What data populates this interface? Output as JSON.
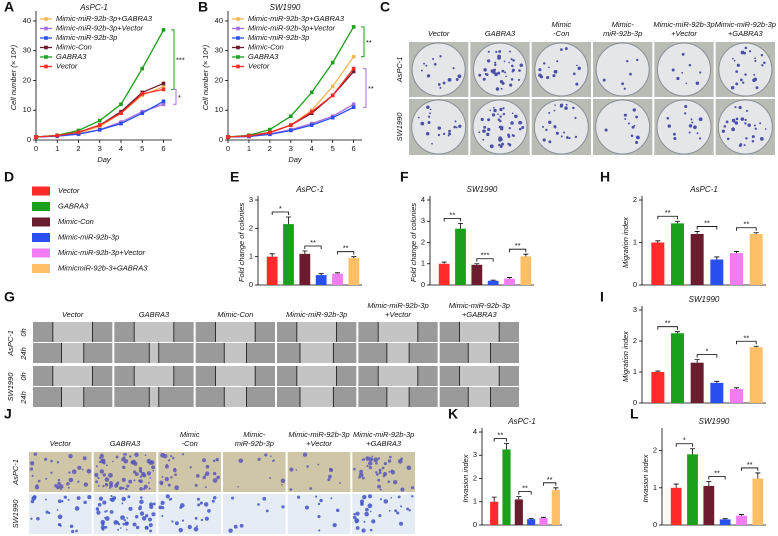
{
  "legend_panel": {
    "label": "D",
    "items": [
      {
        "name": "Vector",
        "color": "#ff2a2a"
      },
      {
        "name": "GABRA3",
        "color": "#1aa01a"
      },
      {
        "name": "Mimic-Con",
        "color": "#6b1c2e"
      },
      {
        "name": "Mimic-miR-92b-3p",
        "color": "#2a4ff0"
      },
      {
        "name": "Mimic-miR-92b-3p+Vector",
        "color": "#f27cf2"
      },
      {
        "name": "MimicmiR-92b-3+GABRA3",
        "color": "#ffbf66"
      }
    ]
  },
  "image_panels": [
    {
      "label": "C",
      "kind": "dish",
      "columns": [
        [
          "Vector"
        ],
        [
          "GABRA3"
        ],
        [
          "Mimic",
          "-Con"
        ],
        [
          "Mimic-",
          "miR-92b-3p"
        ],
        [
          "Mimic-miR-92b-3p",
          "+Vector"
        ],
        [
          "Mimic-miR-92b-3p",
          "+GABRA3"
        ]
      ],
      "rows": [
        "AsPC-1",
        "SW1990"
      ]
    },
    {
      "label": "G",
      "kind": "scratch",
      "columns": [
        [
          "Vector"
        ],
        [
          "GABRA3"
        ],
        [
          "Mimic-Con"
        ],
        [
          "Mimic-miR-92b-3p"
        ],
        [
          "Mimic-miR-92b-3p",
          "+Vector"
        ],
        [
          "Mimic-miR-92b-3p",
          "+GABRA3"
        ]
      ],
      "rows": [
        "AsPC-1",
        "SW1990"
      ],
      "subrows": [
        "0h",
        "24h"
      ]
    },
    {
      "label": "J",
      "kind": "transwell",
      "columns": [
        [
          "Vector"
        ],
        [
          "GABRA3"
        ],
        [
          "Mimic",
          "-Con"
        ],
        [
          "Mimic-",
          "miR-92b-3p"
        ],
        [
          "Mimic-miR-92b-3p",
          "+Vector"
        ],
        [
          "Mimic-miR-92b-3p",
          "+GABRA3"
        ]
      ],
      "rows": [
        "AsPC-1",
        "SW1990"
      ]
    }
  ],
  "chart_data": [
    {
      "type": "line",
      "label": "A",
      "title": "AsPC-1",
      "xlabel": "Day",
      "ylabel": "Cell number (× 10⁴)",
      "x": [
        0,
        1,
        2,
        3,
        4,
        5,
        6
      ],
      "xlim": [
        0,
        6.4
      ],
      "xticks": [
        0,
        1,
        2,
        3,
        4,
        5,
        6
      ],
      "ylim": [
        0,
        42
      ],
      "yticks": [
        0,
        10,
        20,
        30,
        40
      ],
      "series": [
        {
          "name": "Mimic-miR-92b-3p+GABRA3",
          "color": "#f5b55a",
          "values": [
            1,
            1.4,
            2.4,
            4.5,
            9,
            15,
            18
          ]
        },
        {
          "name": "Mimic-miR-92b-3p+Vector",
          "color": "#a86ce0",
          "values": [
            1,
            1.3,
            2,
            3.5,
            6,
            9.5,
            12
          ]
        },
        {
          "name": "Mimic-miR-92b-3p",
          "color": "#2a4ff0",
          "values": [
            1,
            1.3,
            2,
            3.4,
            5.5,
            9,
            13
          ]
        },
        {
          "name": "Mimic-Con",
          "color": "#6b1c2e",
          "values": [
            1,
            1.5,
            2.6,
            5,
            9.5,
            16,
            19
          ]
        },
        {
          "name": "GABRA3",
          "color": "#1aa01a",
          "values": [
            1,
            1.6,
            3.2,
            6.5,
            12,
            24,
            37
          ]
        },
        {
          "name": "Vector",
          "color": "#ff2a2a",
          "values": [
            1,
            1.5,
            2.6,
            5,
            9,
            15.5,
            17
          ]
        }
      ],
      "annotations": [
        {
          "series": [
            4,
            5
          ],
          "label": "***",
          "color": "#1aa01a"
        },
        {
          "series": [
            5,
            1
          ],
          "label": "*",
          "color": "#a86ce0"
        }
      ]
    },
    {
      "type": "line",
      "label": "B",
      "title": "SW1990",
      "xlabel": "Day",
      "ylabel": "Cell number (× 10⁴)",
      "x": [
        0,
        1,
        2,
        3,
        4,
        5,
        6
      ],
      "xlim": [
        0,
        6.4
      ],
      "xticks": [
        0,
        1,
        2,
        3,
        4,
        5,
        6
      ],
      "ylim": [
        0,
        42
      ],
      "yticks": [
        0,
        10,
        20,
        30,
        40
      ],
      "series": [
        {
          "name": "Mimic-miR-92b-3p+GABRA3",
          "color": "#f5b55a",
          "values": [
            1,
            1.4,
            2.6,
            5,
            10,
            18,
            28
          ]
        },
        {
          "name": "Mimic-miR-92b-3p+Vector",
          "color": "#a86ce0",
          "values": [
            1,
            1.2,
            2,
            3.5,
            5.5,
            8,
            12
          ]
        },
        {
          "name": "Mimic-miR-92b-3p",
          "color": "#2a4ff0",
          "values": [
            1,
            1.2,
            1.9,
            3.2,
            5,
            7.5,
            11
          ]
        },
        {
          "name": "Mimic-Con",
          "color": "#6b1c2e",
          "values": [
            1,
            1.4,
            2.5,
            5,
            9,
            15,
            23
          ]
        },
        {
          "name": "GABRA3",
          "color": "#1aa01a",
          "values": [
            1,
            1.6,
            3.5,
            8,
            16,
            26,
            38
          ]
        },
        {
          "name": "Vector",
          "color": "#ff2a2a",
          "values": [
            1,
            1.4,
            2.5,
            5,
            9.5,
            15,
            24
          ]
        }
      ],
      "annotations": [
        {
          "series": [
            4,
            0
          ],
          "label": "**",
          "color": "#1aa01a"
        },
        {
          "series": [
            5,
            2
          ],
          "label": "**",
          "color": "#a86ce0"
        }
      ]
    },
    {
      "type": "bar",
      "label": "E",
      "title": "AsPC-1",
      "ylabel": "Fold change of colonies",
      "categories": [
        null,
        null,
        null,
        null,
        null,
        null
      ],
      "values": [
        1.0,
        2.15,
        1.1,
        0.35,
        0.4,
        0.95
      ],
      "errors": [
        0.1,
        0.25,
        0.1,
        0.05,
        0.03,
        0.05
      ],
      "ylim": [
        0,
        3
      ],
      "yticks": [
        0,
        1,
        2,
        3
      ],
      "annotations": [
        {
          "pair": [
            0,
            1
          ],
          "label": "*"
        },
        {
          "pair": [
            2,
            3
          ],
          "label": "**"
        },
        {
          "pair": [
            4,
            5
          ],
          "label": "**"
        }
      ]
    },
    {
      "type": "bar",
      "label": "F",
      "title": "SW1990",
      "ylabel": "Fold change of colonies",
      "categories": [
        null,
        null,
        null,
        null,
        null,
        null
      ],
      "values": [
        1.0,
        2.65,
        0.95,
        0.2,
        0.3,
        1.35
      ],
      "errors": [
        0.08,
        0.25,
        0.05,
        0.03,
        0.05,
        0.1
      ],
      "ylim": [
        0,
        4
      ],
      "yticks": [
        0,
        1,
        2,
        3,
        4
      ],
      "annotations": [
        {
          "pair": [
            0,
            1
          ],
          "label": "**"
        },
        {
          "pair": [
            2,
            3
          ],
          "label": "***"
        },
        {
          "pair": [
            4,
            5
          ],
          "label": "**"
        }
      ]
    },
    {
      "type": "bar",
      "label": "H",
      "title": "AsPC-1",
      "ylabel": "Migration index",
      "categories": [
        null,
        null,
        null,
        null,
        null,
        null
      ],
      "values": [
        1.0,
        1.45,
        1.2,
        0.6,
        0.75,
        1.2
      ],
      "errors": [
        0.04,
        0.05,
        0.06,
        0.06,
        0.04,
        0.03
      ],
      "ylim": [
        0,
        2
      ],
      "yticks": [
        0,
        1,
        2
      ],
      "annotations": [
        {
          "pair": [
            0,
            1
          ],
          "label": "**"
        },
        {
          "pair": [
            2,
            3
          ],
          "label": "**"
        },
        {
          "pair": [
            4,
            5
          ],
          "label": "**"
        }
      ]
    },
    {
      "type": "bar",
      "label": "I",
      "title": "SW1990",
      "ylabel": "Migration index",
      "categories": [
        null,
        null,
        null,
        null,
        null,
        null
      ],
      "values": [
        1.0,
        2.25,
        1.3,
        0.65,
        0.45,
        1.8
      ],
      "errors": [
        0.03,
        0.05,
        0.1,
        0.05,
        0.04,
        0.03
      ],
      "ylim": [
        0,
        3
      ],
      "yticks": [
        0,
        1,
        2,
        3
      ],
      "annotations": [
        {
          "pair": [
            0,
            1
          ],
          "label": "**"
        },
        {
          "pair": [
            2,
            3
          ],
          "label": "*"
        },
        {
          "pair": [
            4,
            5
          ],
          "label": "**"
        }
      ]
    },
    {
      "type": "bar",
      "label": "K",
      "title": "AsPC-1",
      "ylabel": "Invasion index",
      "categories": [
        null,
        null,
        null,
        null,
        null,
        null
      ],
      "values": [
        1.0,
        3.25,
        1.1,
        0.25,
        0.3,
        1.5
      ],
      "errors": [
        0.2,
        0.25,
        0.12,
        0.03,
        0.03,
        0.1
      ],
      "ylim": [
        0,
        4
      ],
      "yticks": [
        0,
        1,
        2,
        3,
        4
      ],
      "annotations": [
        {
          "pair": [
            0,
            1
          ],
          "label": "**"
        },
        {
          "pair": [
            2,
            3
          ],
          "label": "**"
        },
        {
          "pair": [
            4,
            5
          ],
          "label": "**"
        }
      ]
    },
    {
      "type": "bar",
      "label": "L",
      "title": "SW1990",
      "ylabel": "Invasion index",
      "categories": [
        null,
        null,
        null,
        null,
        null,
        null
      ],
      "values": [
        1.0,
        1.9,
        1.05,
        0.15,
        0.25,
        1.25
      ],
      "errors": [
        0.1,
        0.15,
        0.12,
        0.02,
        0.03,
        0.15
      ],
      "ylim": [
        0,
        2.5
      ],
      "yticks": [
        0,
        1,
        2
      ],
      "annotations": [
        {
          "pair": [
            0,
            1
          ],
          "label": "*"
        },
        {
          "pair": [
            2,
            3
          ],
          "label": "**"
        },
        {
          "pair": [
            4,
            5
          ],
          "label": "**"
        }
      ]
    }
  ]
}
